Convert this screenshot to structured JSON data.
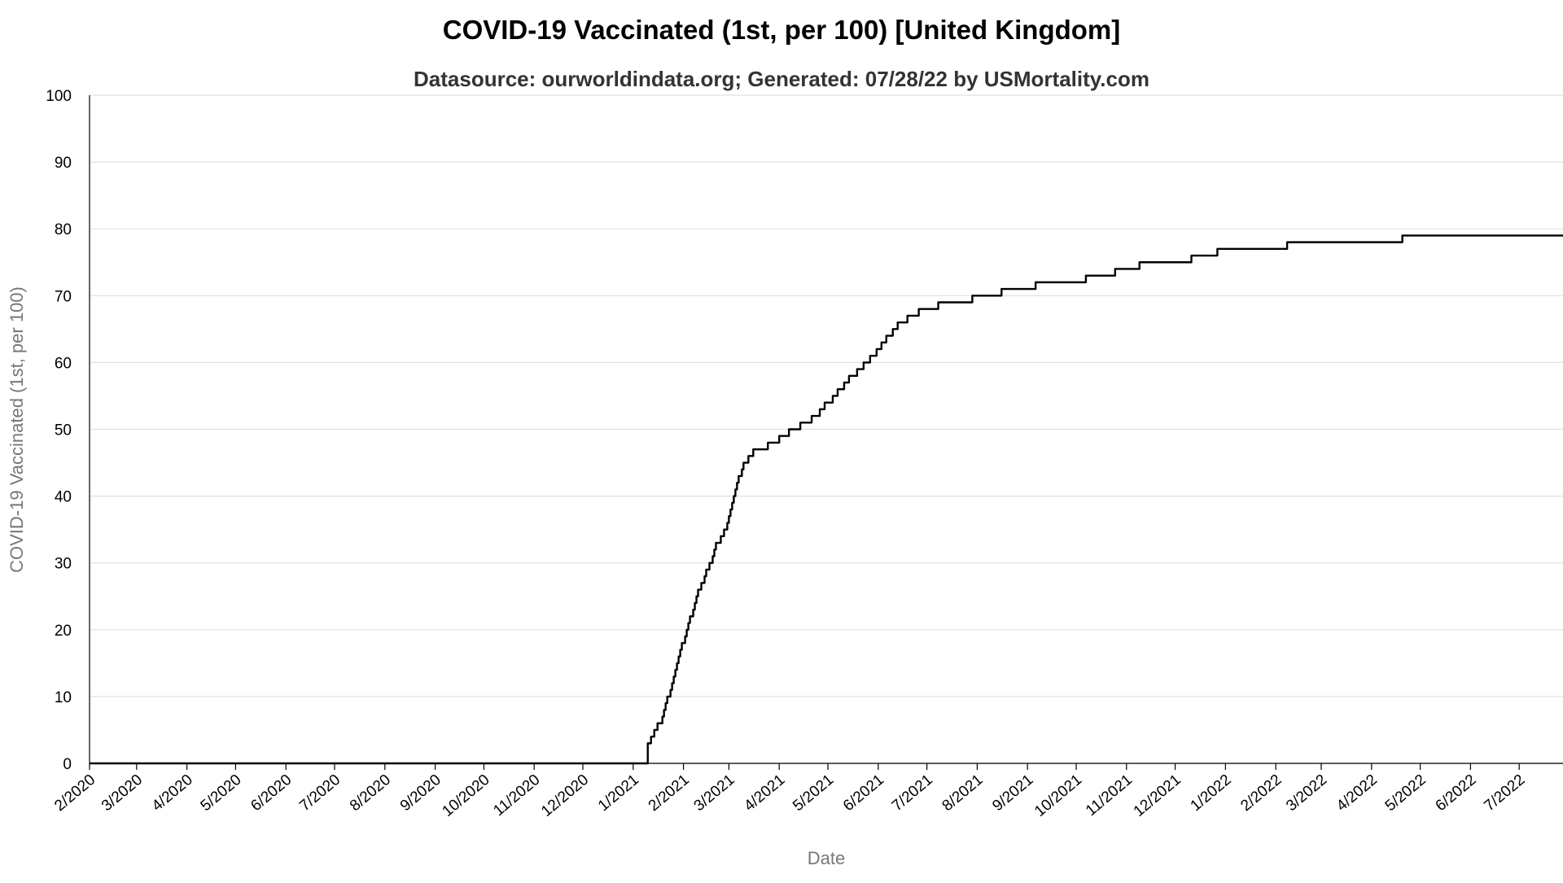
{
  "chart_data": {
    "type": "line",
    "title": "COVID-19 Vaccinated (1st, per 100) [United Kingdom]",
    "subtitle": "Datasource: ourworldindata.org; Generated: 07/28/22 by USMortality.com",
    "xlabel": "Date",
    "ylabel": "COVID-19 Vaccinated (1st, per 100)",
    "ylim": [
      0,
      100
    ],
    "yticks": [
      0,
      10,
      20,
      30,
      40,
      50,
      60,
      70,
      80,
      90,
      100
    ],
    "xlim": [
      "2020-02-01",
      "2022-07-28"
    ],
    "xticks": [
      {
        "date": "2020-02-01",
        "label": "2/2020"
      },
      {
        "date": "2020-03-01",
        "label": "3/2020"
      },
      {
        "date": "2020-04-01",
        "label": "4/2020"
      },
      {
        "date": "2020-05-01",
        "label": "5/2020"
      },
      {
        "date": "2020-06-01",
        "label": "6/2020"
      },
      {
        "date": "2020-07-01",
        "label": "7/2020"
      },
      {
        "date": "2020-08-01",
        "label": "8/2020"
      },
      {
        "date": "2020-09-01",
        "label": "9/2020"
      },
      {
        "date": "2020-10-01",
        "label": "10/2020"
      },
      {
        "date": "2020-11-01",
        "label": "11/2020"
      },
      {
        "date": "2020-12-01",
        "label": "12/2020"
      },
      {
        "date": "2021-01-01",
        "label": "1/2021"
      },
      {
        "date": "2021-02-01",
        "label": "2/2021"
      },
      {
        "date": "2021-03-01",
        "label": "3/2021"
      },
      {
        "date": "2021-04-01",
        "label": "4/2021"
      },
      {
        "date": "2021-05-01",
        "label": "5/2021"
      },
      {
        "date": "2021-06-01",
        "label": "6/2021"
      },
      {
        "date": "2021-07-01",
        "label": "7/2021"
      },
      {
        "date": "2021-08-01",
        "label": "8/2021"
      },
      {
        "date": "2021-09-01",
        "label": "9/2021"
      },
      {
        "date": "2021-10-01",
        "label": "10/2021"
      },
      {
        "date": "2021-11-01",
        "label": "11/2021"
      },
      {
        "date": "2021-12-01",
        "label": "12/2021"
      },
      {
        "date": "2022-01-01",
        "label": "1/2022"
      },
      {
        "date": "2022-02-01",
        "label": "2/2022"
      },
      {
        "date": "2022-03-01",
        "label": "3/2022"
      },
      {
        "date": "2022-04-01",
        "label": "4/2022"
      },
      {
        "date": "2022-05-01",
        "label": "5/2022"
      },
      {
        "date": "2022-06-01",
        "label": "6/2022"
      },
      {
        "date": "2022-07-01",
        "label": "7/2022"
      }
    ],
    "grid": true,
    "legend": false,
    "series": [
      {
        "color": "#000000",
        "step": true,
        "points": [
          [
            "2020-02-01",
            0
          ],
          [
            "2021-01-10",
            0
          ],
          [
            "2021-01-10",
            3
          ],
          [
            "2021-01-11",
            3
          ],
          [
            "2021-01-12",
            4
          ],
          [
            "2021-01-13",
            4
          ],
          [
            "2021-01-14",
            5
          ],
          [
            "2021-01-15",
            5
          ],
          [
            "2021-01-16",
            6
          ],
          [
            "2021-01-18",
            6
          ],
          [
            "2021-01-19",
            7
          ],
          [
            "2021-01-20",
            8
          ],
          [
            "2021-01-21",
            9
          ],
          [
            "2021-01-22",
            10
          ],
          [
            "2021-01-24",
            11
          ],
          [
            "2021-01-25",
            12
          ],
          [
            "2021-01-26",
            13
          ],
          [
            "2021-01-27",
            14
          ],
          [
            "2021-01-28",
            15
          ],
          [
            "2021-01-29",
            16
          ],
          [
            "2021-01-30",
            17
          ],
          [
            "2021-01-31",
            18
          ],
          [
            "2021-02-02",
            19
          ],
          [
            "2021-02-03",
            20
          ],
          [
            "2021-02-04",
            21
          ],
          [
            "2021-02-05",
            22
          ],
          [
            "2021-02-07",
            23
          ],
          [
            "2021-02-08",
            24
          ],
          [
            "2021-02-09",
            25
          ],
          [
            "2021-02-10",
            26
          ],
          [
            "2021-02-12",
            27
          ],
          [
            "2021-02-14",
            28
          ],
          [
            "2021-02-15",
            29
          ],
          [
            "2021-02-17",
            30
          ],
          [
            "2021-02-19",
            31
          ],
          [
            "2021-02-20",
            32
          ],
          [
            "2021-02-21",
            33
          ],
          [
            "2021-02-24",
            34
          ],
          [
            "2021-02-26",
            35
          ],
          [
            "2021-02-28",
            36
          ],
          [
            "2021-03-01",
            37
          ],
          [
            "2021-03-02",
            38
          ],
          [
            "2021-03-03",
            39
          ],
          [
            "2021-03-04",
            40
          ],
          [
            "2021-03-05",
            41
          ],
          [
            "2021-03-06",
            42
          ],
          [
            "2021-03-07",
            43
          ],
          [
            "2021-03-09",
            44
          ],
          [
            "2021-03-10",
            45
          ],
          [
            "2021-03-13",
            46
          ],
          [
            "2021-03-16",
            47
          ],
          [
            "2021-03-25",
            48
          ],
          [
            "2021-04-01",
            49
          ],
          [
            "2021-04-07",
            50
          ],
          [
            "2021-04-14",
            51
          ],
          [
            "2021-04-21",
            52
          ],
          [
            "2021-04-26",
            53
          ],
          [
            "2021-04-29",
            54
          ],
          [
            "2021-05-04",
            55
          ],
          [
            "2021-05-07",
            56
          ],
          [
            "2021-05-11",
            57
          ],
          [
            "2021-05-14",
            58
          ],
          [
            "2021-05-19",
            59
          ],
          [
            "2021-05-23",
            60
          ],
          [
            "2021-05-27",
            61
          ],
          [
            "2021-05-31",
            62
          ],
          [
            "2021-06-03",
            63
          ],
          [
            "2021-06-06",
            64
          ],
          [
            "2021-06-10",
            65
          ],
          [
            "2021-06-13",
            66
          ],
          [
            "2021-06-19",
            67
          ],
          [
            "2021-06-26",
            68
          ],
          [
            "2021-07-08",
            69
          ],
          [
            "2021-07-29",
            70
          ],
          [
            "2021-08-16",
            71
          ],
          [
            "2021-09-06",
            72
          ],
          [
            "2021-10-07",
            73
          ],
          [
            "2021-10-25",
            74
          ],
          [
            "2021-11-09",
            75
          ],
          [
            "2021-12-11",
            76
          ],
          [
            "2021-12-27",
            77
          ],
          [
            "2022-02-08",
            78
          ],
          [
            "2022-04-20",
            79
          ],
          [
            "2022-07-28",
            79
          ]
        ]
      }
    ]
  }
}
